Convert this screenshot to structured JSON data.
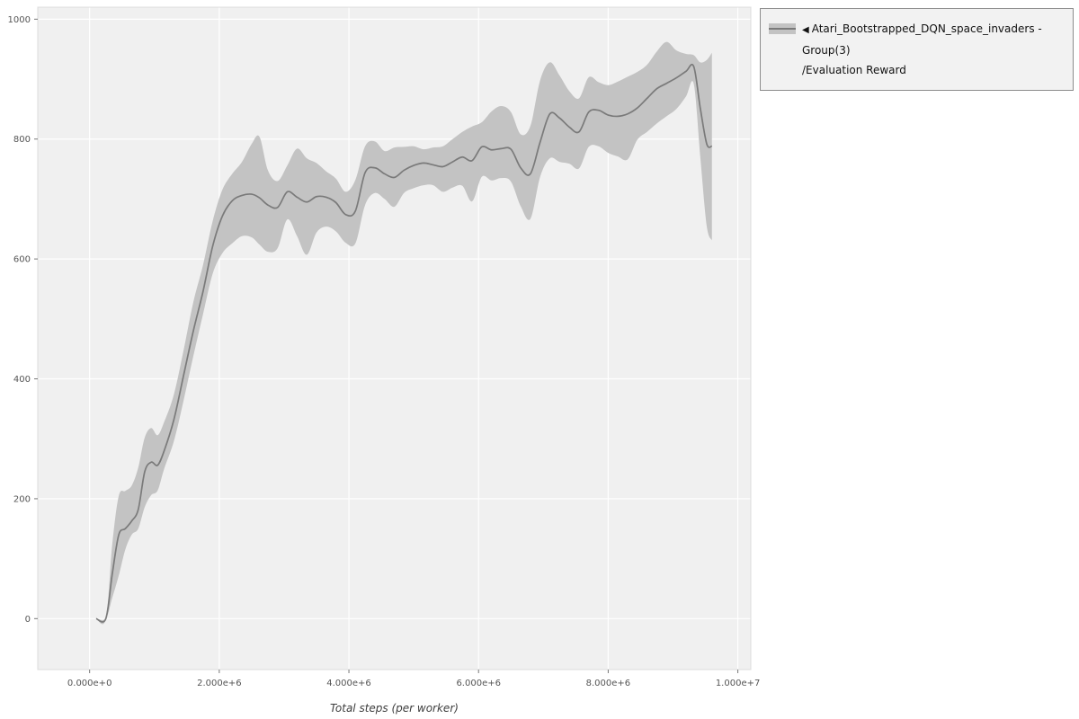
{
  "page": {
    "background": "#ffffff"
  },
  "legend": {
    "toggle_icon": "◀",
    "series_name": "Atari_Bootstrapped_DQN_space_invaders - Group(3)",
    "metric_name": "/Evaluation Reward",
    "box_bg": "#f2f2f2",
    "box_border": "#8c8c8c"
  },
  "chart_data": {
    "type": "line",
    "title": "",
    "xlabel": "Total steps (per worker)",
    "ylabel": "",
    "xlim": [
      -800000,
      10200000
    ],
    "ylim": [
      -85,
      1020
    ],
    "grid": true,
    "legend_position": "top-right-outside",
    "x_ticks": [
      0,
      2000000,
      4000000,
      6000000,
      8000000,
      10000000
    ],
    "x_tick_labels": [
      "0.000e+0",
      "2.000e+6",
      "4.000e+6",
      "6.000e+6",
      "8.000e+6",
      "1.000e+7"
    ],
    "y_ticks": [
      0,
      200,
      400,
      600,
      800,
      1000
    ],
    "y_tick_labels": [
      "0",
      "200",
      "400",
      "600",
      "800",
      "1000"
    ],
    "colors": {
      "panel_bg": "#f0f0f0",
      "grid": "#ffffff",
      "panel_border": "#dcdcdc",
      "tick": "#777777",
      "tick_text": "#555555"
    },
    "series": [
      {
        "name": "Atari_Bootstrapped_DQN_space_invaders - Group(3)/Evaluation Reward",
        "line_color": "#7a7a7a",
        "band_color": "#c3c3c3",
        "points_format": [
          "x",
          "mean",
          "lo",
          "hi"
        ],
        "points": [
          [
            100000,
            0,
            0,
            0
          ],
          [
            250000,
            0,
            0,
            0
          ],
          [
            350000,
            75,
            35,
            125
          ],
          [
            450000,
            140,
            72,
            205
          ],
          [
            550000,
            150,
            115,
            213
          ],
          [
            650000,
            163,
            140,
            222
          ],
          [
            750000,
            182,
            150,
            252
          ],
          [
            850000,
            245,
            186,
            302
          ],
          [
            950000,
            261,
            206,
            318
          ],
          [
            1050000,
            256,
            214,
            306
          ],
          [
            1150000,
            280,
            250,
            328
          ],
          [
            1300000,
            332,
            296,
            374
          ],
          [
            1450000,
            406,
            364,
            448
          ],
          [
            1600000,
            480,
            438,
            528
          ],
          [
            1750000,
            546,
            508,
            590
          ],
          [
            1900000,
            622,
            576,
            664
          ],
          [
            2050000,
            672,
            610,
            716
          ],
          [
            2200000,
            697,
            626,
            742
          ],
          [
            2350000,
            706,
            638,
            762
          ],
          [
            2500000,
            708,
            636,
            792
          ],
          [
            2620000,
            702,
            624,
            804
          ],
          [
            2750000,
            690,
            612,
            748
          ],
          [
            2900000,
            686,
            618,
            730
          ],
          [
            3050000,
            712,
            666,
            756
          ],
          [
            3200000,
            703,
            638,
            784
          ],
          [
            3350000,
            695,
            607,
            768
          ],
          [
            3500000,
            704,
            644,
            760
          ],
          [
            3650000,
            703,
            654,
            746
          ],
          [
            3800000,
            694,
            646,
            734
          ],
          [
            3950000,
            674,
            627,
            712
          ],
          [
            4100000,
            680,
            626,
            732
          ],
          [
            4250000,
            744,
            690,
            788
          ],
          [
            4400000,
            752,
            710,
            796
          ],
          [
            4550000,
            742,
            700,
            780
          ],
          [
            4700000,
            736,
            687,
            786
          ],
          [
            4850000,
            748,
            710,
            787
          ],
          [
            5000000,
            756,
            718,
            788
          ],
          [
            5150000,
            760,
            723,
            783
          ],
          [
            5300000,
            757,
            723,
            786
          ],
          [
            5450000,
            754,
            712,
            788
          ],
          [
            5600000,
            762,
            719,
            800
          ],
          [
            5750000,
            770,
            722,
            812
          ],
          [
            5900000,
            764,
            696,
            821
          ],
          [
            6050000,
            787,
            737,
            828
          ],
          [
            6200000,
            782,
            731,
            846
          ],
          [
            6350000,
            784,
            735,
            855
          ],
          [
            6500000,
            783,
            729,
            845
          ],
          [
            6650000,
            752,
            688,
            808
          ],
          [
            6800000,
            742,
            667,
            822
          ],
          [
            6950000,
            795,
            737,
            898
          ],
          [
            7100000,
            842,
            768,
            928
          ],
          [
            7250000,
            835,
            762,
            906
          ],
          [
            7400000,
            820,
            759,
            880
          ],
          [
            7550000,
            812,
            751,
            868
          ],
          [
            7700000,
            845,
            787,
            903
          ],
          [
            7850000,
            848,
            788,
            895
          ],
          [
            8000000,
            840,
            777,
            890
          ],
          [
            8150000,
            838,
            771,
            896
          ],
          [
            8300000,
            842,
            766,
            904
          ],
          [
            8450000,
            852,
            799,
            912
          ],
          [
            8600000,
            868,
            812,
            924
          ],
          [
            8750000,
            884,
            826,
            946
          ],
          [
            8900000,
            893,
            838,
            962
          ],
          [
            9050000,
            902,
            850,
            948
          ],
          [
            9200000,
            913,
            871,
            942
          ],
          [
            9320000,
            921,
            892,
            940
          ],
          [
            9420000,
            852,
            771,
            928
          ],
          [
            9520000,
            792,
            655,
            932
          ],
          [
            9600000,
            788,
            631,
            944
          ]
        ]
      }
    ]
  }
}
